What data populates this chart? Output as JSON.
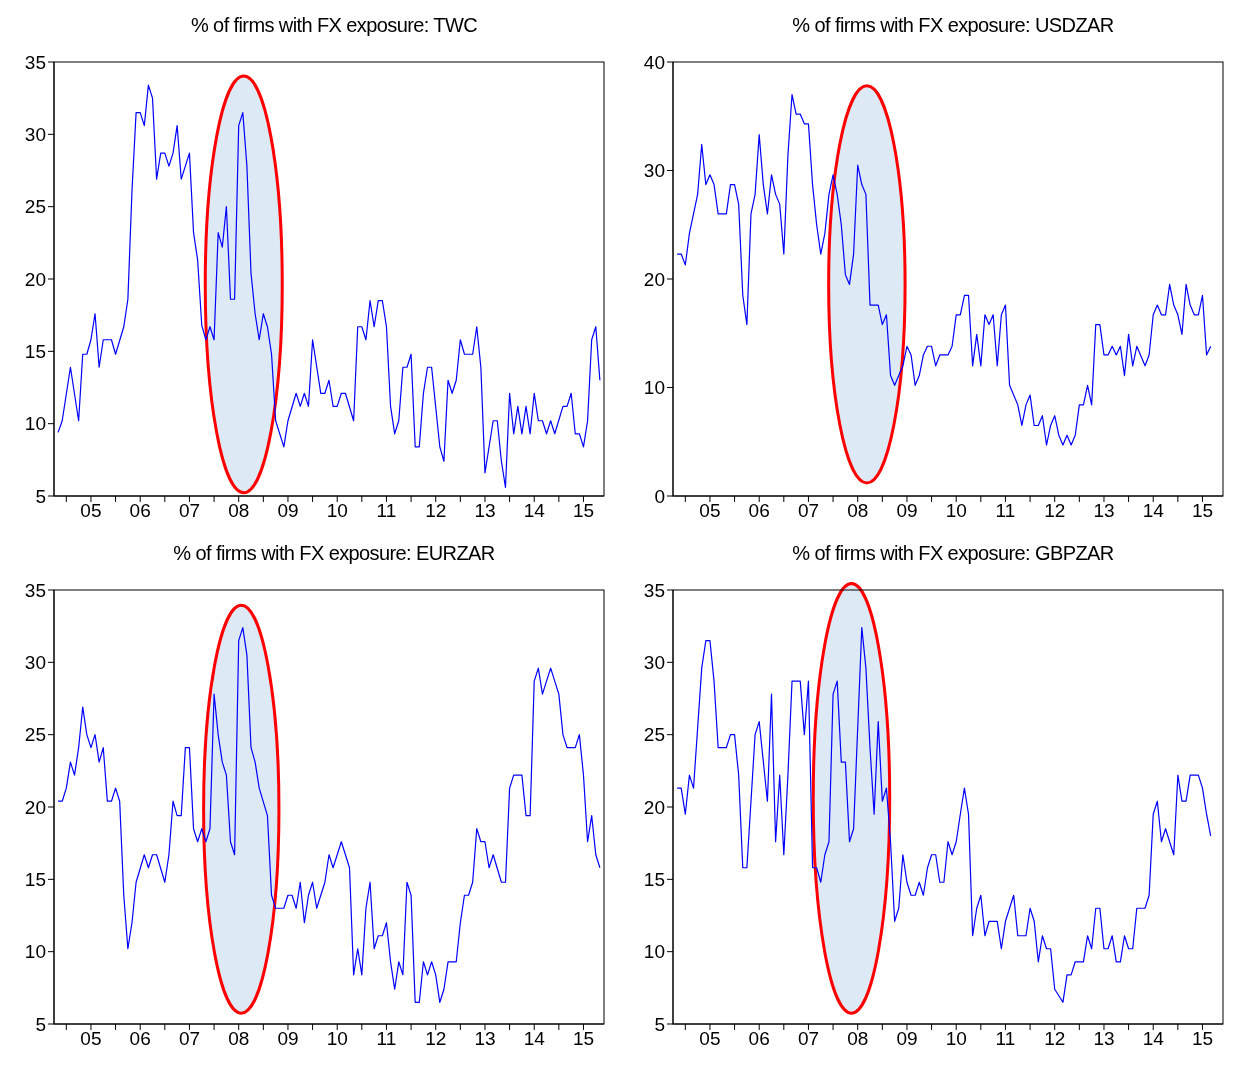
{
  "chart_data": [
    {
      "type": "line",
      "title": "% of firms with FX exposure: TWC",
      "color": "#0000ff",
      "x": [
        "2004-11",
        "2004-12",
        "2005-02",
        "2005-04",
        "2005-05",
        "2005-06",
        "2005-07",
        "2005-08",
        "2005-09",
        "2005-10",
        "2005-12",
        "2006-01",
        "2006-03",
        "2006-04",
        "2006-05",
        "2006-06",
        "2006-07",
        "2006-08",
        "2006-09",
        "2006-10",
        "2006-11",
        "2006-12",
        "2007-01",
        "2007-02",
        "2007-03",
        "2007-04",
        "2007-05",
        "2007-07",
        "2007-08",
        "2007-09",
        "2007-10",
        "2007-11",
        "2007-12",
        "2008-01",
        "2008-02",
        "2008-03",
        "2008-04",
        "2008-05",
        "2008-06",
        "2008-07",
        "2008-08",
        "2008-09",
        "2008-10",
        "2008-11",
        "2008-12",
        "2009-01",
        "2009-02",
        "2009-03",
        "2009-04",
        "2009-06",
        "2009-07",
        "2009-09",
        "2009-10",
        "2009-11",
        "2009-12",
        "2010-01",
        "2010-03",
        "2010-04",
        "2010-05",
        "2010-06",
        "2010-07",
        "2010-08",
        "2010-09",
        "2010-11",
        "2010-12",
        "2011-01",
        "2011-02",
        "2011-03",
        "2011-04",
        "2011-05",
        "2011-06",
        "2011-07",
        "2011-08",
        "2011-09",
        "2011-10",
        "2011-11",
        "2011-12",
        "2012-01",
        "2012-02",
        "2012-03",
        "2012-04",
        "2012-05",
        "2012-06",
        "2012-08",
        "2012-09",
        "2012-10",
        "2012-11",
        "2012-12",
        "2013-01",
        "2013-02",
        "2013-04",
        "2013-05",
        "2013-06",
        "2013-07",
        "2013-09",
        "2013-10",
        "2013-11",
        "2013-12",
        "2014-01",
        "2014-02",
        "2014-03",
        "2014-04",
        "2014-05",
        "2014-06",
        "2014-07",
        "2014-08",
        "2014-09",
        "2014-10",
        "2014-11",
        "2014-12",
        "2015-02",
        "2015-03",
        "2015-04",
        "2015-05",
        "2015-06",
        "2015-07",
        "2015-08",
        "2015-09",
        "2015-10",
        "2015-11"
      ],
      "values": [
        9.4,
        10.2,
        13.9,
        10.2,
        14.8,
        14.8,
        15.8,
        17.6,
        13.9,
        15.8,
        15.8,
        14.8,
        16.7,
        18.6,
        26.1,
        31.5,
        31.5,
        30.6,
        33.4,
        32.5,
        26.9,
        28.7,
        28.7,
        27.8,
        28.7,
        30.6,
        26.9,
        28.7,
        23.2,
        21.3,
        16.8,
        15.8,
        16.7,
        15.8,
        23.2,
        22.2,
        25.0,
        18.6,
        18.6,
        30.6,
        31.5,
        27.8,
        20.4,
        17.6,
        15.8,
        17.6,
        16.7,
        14.8,
        10.2,
        8.4,
        10.2,
        12.1,
        11.2,
        12.1,
        11.2,
        15.8,
        12.1,
        12.1,
        13.0,
        11.2,
        11.2,
        12.1,
        12.1,
        10.2,
        16.7,
        16.7,
        15.8,
        18.5,
        16.7,
        18.5,
        18.5,
        16.7,
        11.2,
        9.3,
        10.2,
        13.9,
        13.9,
        14.8,
        8.4,
        8.4,
        12.1,
        13.9,
        13.9,
        8.4,
        7.4,
        13.0,
        12.1,
        13.0,
        15.8,
        14.8,
        14.8,
        16.7,
        13.9,
        6.6,
        10.2,
        10.2,
        7.4,
        5.6,
        12.1,
        9.3,
        11.2,
        9.3,
        11.2,
        9.3,
        12.1,
        10.2,
        10.2,
        9.3,
        10.2,
        9.3,
        11.2,
        11.2,
        12.1,
        9.3,
        9.3,
        8.4,
        10.2,
        15.8,
        16.7,
        13.0
      ],
      "xlim": [
        "2004-10",
        "2015-12"
      ],
      "xticks": [
        {
          "value": "2005-01",
          "label": null
        },
        {
          "value": "2005-07",
          "label": "05"
        },
        {
          "value": "2006-01",
          "label": null
        },
        {
          "value": "2006-07",
          "label": "06"
        },
        {
          "value": "2007-01",
          "label": null
        },
        {
          "value": "2007-07",
          "label": "07"
        },
        {
          "value": "2008-01",
          "label": null
        },
        {
          "value": "2008-07",
          "label": "08"
        },
        {
          "value": "2009-01",
          "label": null
        },
        {
          "value": "2009-07",
          "label": "09"
        },
        {
          "value": "2010-01",
          "label": null
        },
        {
          "value": "2010-07",
          "label": "10"
        },
        {
          "value": "2011-01",
          "label": null
        },
        {
          "value": "2011-07",
          "label": "11"
        },
        {
          "value": "2012-01",
          "label": null
        },
        {
          "value": "2012-07",
          "label": "12"
        },
        {
          "value": "2013-01",
          "label": null
        },
        {
          "value": "2013-07",
          "label": "13"
        },
        {
          "value": "2014-01",
          "label": null
        },
        {
          "value": "2014-07",
          "label": "14"
        },
        {
          "value": "2015-01",
          "label": null
        },
        {
          "value": "2015-07",
          "label": "15"
        }
      ],
      "ylim": [
        5,
        35
      ],
      "yticks": [
        5,
        10,
        15,
        20,
        25,
        30,
        35
      ]
    },
    {
      "type": "line",
      "title": "% of firms with FX exposure: USDZAR",
      "color": "#0000ff",
      "x": [
        "2004-11",
        "2004-12",
        "2005-01",
        "2005-02",
        "2005-04",
        "2005-05",
        "2005-06",
        "2005-07",
        "2005-08",
        "2005-09",
        "2005-11",
        "2005-12",
        "2006-01",
        "2006-02",
        "2006-03",
        "2006-04",
        "2006-05",
        "2006-06",
        "2006-07",
        "2006-08",
        "2006-09",
        "2006-10",
        "2006-11",
        "2006-12",
        "2007-01",
        "2007-02",
        "2007-03",
        "2007-04",
        "2007-05",
        "2007-06",
        "2007-07",
        "2007-08",
        "2007-09",
        "2007-10",
        "2007-11",
        "2007-12",
        "2008-01",
        "2008-02",
        "2008-03",
        "2008-04",
        "2008-05",
        "2008-06",
        "2008-07",
        "2008-08",
        "2008-09",
        "2008-10",
        "2008-12",
        "2009-01",
        "2009-02",
        "2009-03",
        "2009-04",
        "2009-06",
        "2009-07",
        "2009-08",
        "2009-09",
        "2009-10",
        "2009-11",
        "2009-12",
        "2010-01",
        "2010-02",
        "2010-03",
        "2010-05",
        "2010-06",
        "2010-07",
        "2010-08",
        "2010-09",
        "2010-10",
        "2010-11",
        "2010-12",
        "2011-01",
        "2011-02",
        "2011-03",
        "2011-04",
        "2011-05",
        "2011-06",
        "2011-07",
        "2011-08",
        "2011-10",
        "2011-11",
        "2011-12",
        "2012-01",
        "2012-02",
        "2012-03",
        "2012-04",
        "2012-05",
        "2012-06",
        "2012-07",
        "2012-08",
        "2012-09",
        "2012-10",
        "2012-11",
        "2012-12",
        "2013-01",
        "2013-02",
        "2013-03",
        "2013-04",
        "2013-05",
        "2013-06",
        "2013-07",
        "2013-08",
        "2013-09",
        "2013-10",
        "2013-11",
        "2013-12",
        "2014-01",
        "2014-02",
        "2014-03",
        "2014-05",
        "2014-06",
        "2014-07",
        "2014-08",
        "2014-09",
        "2014-10",
        "2014-11",
        "2014-12",
        "2015-01",
        "2015-02",
        "2015-03",
        "2015-04",
        "2015-05",
        "2015-06",
        "2015-07",
        "2015-08",
        "2015-09"
      ],
      "values": [
        22.3,
        22.3,
        21.3,
        24.2,
        27.8,
        32.4,
        28.7,
        29.6,
        28.7,
        26.0,
        26.0,
        28.7,
        28.7,
        26.9,
        18.5,
        15.8,
        26.0,
        27.8,
        33.3,
        28.7,
        26.0,
        29.6,
        27.8,
        26.9,
        22.3,
        31.4,
        37.0,
        35.2,
        35.2,
        34.3,
        34.3,
        28.7,
        25.0,
        22.3,
        24.2,
        27.8,
        29.6,
        27.8,
        25.0,
        20.4,
        19.5,
        22.3,
        30.5,
        28.7,
        27.8,
        17.6,
        17.6,
        15.8,
        16.7,
        11.1,
        10.2,
        12.0,
        13.8,
        13.0,
        10.2,
        11.1,
        13.0,
        13.8,
        13.8,
        12.0,
        13.0,
        13.0,
        13.8,
        16.7,
        16.7,
        18.5,
        18.5,
        12.0,
        14.9,
        12.0,
        16.7,
        15.8,
        16.7,
        12.0,
        16.7,
        17.6,
        10.2,
        8.4,
        6.5,
        8.4,
        9.3,
        6.5,
        6.5,
        7.4,
        4.7,
        6.5,
        7.4,
        5.6,
        4.7,
        5.6,
        4.7,
        5.6,
        8.4,
        8.4,
        10.2,
        8.4,
        15.8,
        15.8,
        13.0,
        13.0,
        13.8,
        13.0,
        13.8,
        11.1,
        14.9,
        12.0,
        13.8,
        12.0,
        13.0,
        16.7,
        17.6,
        16.7,
        16.7,
        19.5,
        17.6,
        16.7,
        14.9,
        19.5,
        17.6,
        16.7,
        16.7,
        18.5,
        13.0,
        13.8
      ],
      "xlim": [
        "2004-10",
        "2015-12"
      ],
      "xticks": [
        {
          "value": "2005-01",
          "label": null
        },
        {
          "value": "2005-07",
          "label": "05"
        },
        {
          "value": "2006-01",
          "label": null
        },
        {
          "value": "2006-07",
          "label": "06"
        },
        {
          "value": "2007-01",
          "label": null
        },
        {
          "value": "2007-07",
          "label": "07"
        },
        {
          "value": "2008-01",
          "label": null
        },
        {
          "value": "2008-07",
          "label": "08"
        },
        {
          "value": "2009-01",
          "label": null
        },
        {
          "value": "2009-07",
          "label": "09"
        },
        {
          "value": "2010-01",
          "label": null
        },
        {
          "value": "2010-07",
          "label": "10"
        },
        {
          "value": "2011-01",
          "label": null
        },
        {
          "value": "2011-07",
          "label": "11"
        },
        {
          "value": "2012-01",
          "label": null
        },
        {
          "value": "2012-07",
          "label": "12"
        },
        {
          "value": "2013-01",
          "label": null
        },
        {
          "value": "2013-07",
          "label": "13"
        },
        {
          "value": "2014-01",
          "label": null
        },
        {
          "value": "2014-07",
          "label": "14"
        },
        {
          "value": "2015-01",
          "label": null
        },
        {
          "value": "2015-07",
          "label": "15"
        }
      ],
      "ylim": [
        0,
        40
      ],
      "yticks": [
        0,
        10,
        20,
        30,
        40
      ]
    },
    {
      "type": "line",
      "title": "% of firms with FX exposure: EURZAR",
      "color": "#0000ff",
      "x": [
        "2004-11",
        "2004-12",
        "2005-01",
        "2005-02",
        "2005-03",
        "2005-04",
        "2005-05",
        "2005-06",
        "2005-07",
        "2005-08",
        "2005-09",
        "2005-10",
        "2005-11",
        "2005-12",
        "2006-01",
        "2006-02",
        "2006-03",
        "2006-04",
        "2006-05",
        "2006-06",
        "2006-08",
        "2006-09",
        "2006-10",
        "2006-11",
        "2007-01",
        "2007-02",
        "2007-03",
        "2007-04",
        "2007-05",
        "2007-06",
        "2007-07",
        "2007-08",
        "2007-09",
        "2007-10",
        "2007-11",
        "2007-12",
        "2008-01",
        "2008-02",
        "2008-03",
        "2008-04",
        "2008-05",
        "2008-06",
        "2008-07",
        "2008-08",
        "2008-09",
        "2008-10",
        "2008-11",
        "2008-12",
        "2009-02",
        "2009-03",
        "2009-04",
        "2009-06",
        "2009-07",
        "2009-08",
        "2009-09",
        "2009-10",
        "2009-11",
        "2009-12",
        "2010-01",
        "2010-02",
        "2010-04",
        "2010-05",
        "2010-06",
        "2010-08",
        "2010-10",
        "2010-11",
        "2010-12",
        "2011-01",
        "2011-02",
        "2011-03",
        "2011-04",
        "2011-05",
        "2011-06",
        "2011-07",
        "2011-08",
        "2011-09",
        "2011-10",
        "2011-11",
        "2011-12",
        "2012-01",
        "2012-02",
        "2012-03",
        "2012-04",
        "2012-05",
        "2012-06",
        "2012-07",
        "2012-08",
        "2012-09",
        "2012-10",
        "2012-12",
        "2013-01",
        "2013-02",
        "2013-03",
        "2013-04",
        "2013-05",
        "2013-06",
        "2013-07",
        "2013-08",
        "2013-09",
        "2013-11",
        "2013-12",
        "2014-01",
        "2014-02",
        "2014-04",
        "2014-05",
        "2014-06",
        "2014-07",
        "2014-08",
        "2014-09",
        "2014-11",
        "2015-01",
        "2015-02",
        "2015-03",
        "2015-05",
        "2015-06",
        "2015-07",
        "2015-08",
        "2015-09",
        "2015-10",
        "2015-11"
      ],
      "values": [
        20.4,
        20.4,
        21.3,
        23.1,
        22.2,
        24.1,
        26.9,
        25.0,
        24.1,
        25.0,
        23.1,
        24.1,
        20.4,
        20.4,
        21.3,
        20.4,
        13.9,
        10.2,
        12.0,
        14.8,
        16.7,
        15.8,
        16.7,
        16.7,
        14.8,
        16.7,
        20.4,
        19.4,
        19.4,
        24.1,
        24.1,
        18.5,
        17.6,
        18.5,
        17.6,
        18.5,
        27.8,
        25.0,
        23.1,
        22.2,
        17.6,
        16.7,
        31.5,
        32.4,
        30.5,
        24.1,
        23.1,
        21.3,
        19.4,
        13.9,
        13.0,
        13.0,
        13.9,
        13.9,
        13.0,
        14.8,
        12.0,
        13.9,
        14.8,
        13.0,
        14.8,
        16.7,
        15.8,
        17.6,
        15.8,
        8.4,
        10.2,
        8.4,
        13.0,
        14.8,
        10.2,
        11.1,
        11.1,
        12.0,
        9.3,
        7.4,
        9.3,
        8.4,
        14.8,
        13.9,
        6.5,
        6.5,
        9.3,
        8.4,
        9.3,
        8.4,
        6.5,
        7.4,
        9.3,
        9.3,
        12.0,
        13.9,
        13.9,
        14.8,
        18.5,
        17.6,
        17.6,
        15.8,
        16.7,
        14.8,
        14.8,
        21.3,
        22.2,
        22.2,
        19.4,
        19.4,
        28.7,
        29.6,
        27.8,
        29.6,
        27.8,
        25.0,
        24.1,
        24.1,
        25.0,
        22.2,
        17.6,
        19.4,
        16.7,
        15.8
      ],
      "xlim": [
        "2004-10",
        "2015-12"
      ],
      "xticks": [
        {
          "value": "2005-01",
          "label": null
        },
        {
          "value": "2005-07",
          "label": "05"
        },
        {
          "value": "2006-01",
          "label": null
        },
        {
          "value": "2006-07",
          "label": "06"
        },
        {
          "value": "2007-01",
          "label": null
        },
        {
          "value": "2007-07",
          "label": "07"
        },
        {
          "value": "2008-01",
          "label": null
        },
        {
          "value": "2008-07",
          "label": "08"
        },
        {
          "value": "2009-01",
          "label": null
        },
        {
          "value": "2009-07",
          "label": "09"
        },
        {
          "value": "2010-01",
          "label": null
        },
        {
          "value": "2010-07",
          "label": "10"
        },
        {
          "value": "2011-01",
          "label": null
        },
        {
          "value": "2011-07",
          "label": "11"
        },
        {
          "value": "2012-01",
          "label": null
        },
        {
          "value": "2012-07",
          "label": "12"
        },
        {
          "value": "2013-01",
          "label": null
        },
        {
          "value": "2013-07",
          "label": "13"
        },
        {
          "value": "2014-01",
          "label": null
        },
        {
          "value": "2014-07",
          "label": "14"
        },
        {
          "value": "2015-01",
          "label": null
        },
        {
          "value": "2015-07",
          "label": "15"
        }
      ],
      "ylim": [
        5,
        35
      ],
      "yticks": [
        5,
        10,
        15,
        20,
        25,
        30,
        35
      ]
    },
    {
      "type": "line",
      "title": "% of firms with FX exposure: GBPZAR",
      "color": "#0000ff",
      "x": [
        "2004-11",
        "2004-12",
        "2005-01",
        "2005-02",
        "2005-03",
        "2005-05",
        "2005-06",
        "2005-07",
        "2005-08",
        "2005-09",
        "2005-11",
        "2005-12",
        "2006-01",
        "2006-02",
        "2006-03",
        "2006-04",
        "2006-06",
        "2006-07",
        "2006-09",
        "2006-10",
        "2006-11",
        "2006-12",
        "2007-01",
        "2007-02",
        "2007-03",
        "2007-05",
        "2007-06",
        "2007-07",
        "2007-08",
        "2007-09",
        "2007-10",
        "2007-11",
        "2007-12",
        "2008-01",
        "2008-02",
        "2008-03",
        "2008-04",
        "2008-05",
        "2008-06",
        "2008-08",
        "2008-09",
        "2008-10",
        "2008-11",
        "2008-12",
        "2009-01",
        "2009-02",
        "2009-03",
        "2009-04",
        "2009-05",
        "2009-06",
        "2009-07",
        "2009-08",
        "2009-09",
        "2009-10",
        "2009-11",
        "2009-12",
        "2010-01",
        "2010-02",
        "2010-03",
        "2010-04",
        "2010-05",
        "2010-06",
        "2010-07",
        "2010-08",
        "2010-09",
        "2010-10",
        "2010-11",
        "2010-12",
        "2011-01",
        "2011-02",
        "2011-03",
        "2011-05",
        "2011-06",
        "2011-07",
        "2011-09",
        "2011-10",
        "2011-12",
        "2012-01",
        "2012-02",
        "2012-03",
        "2012-04",
        "2012-05",
        "2012-06",
        "2012-07",
        "2012-09",
        "2012-10",
        "2012-11",
        "2012-12",
        "2013-02",
        "2013-03",
        "2013-04",
        "2013-05",
        "2013-06",
        "2013-07",
        "2013-08",
        "2013-09",
        "2013-10",
        "2013-11",
        "2013-12",
        "2014-01",
        "2014-02",
        "2014-03",
        "2014-05",
        "2014-06",
        "2014-07",
        "2014-08",
        "2014-09",
        "2014-10",
        "2014-12",
        "2015-01",
        "2015-02",
        "2015-03",
        "2015-04",
        "2015-06",
        "2015-07",
        "2015-08",
        "2015-09"
      ],
      "values": [
        21.3,
        21.3,
        19.5,
        22.2,
        21.3,
        29.6,
        31.5,
        31.5,
        28.7,
        24.1,
        24.1,
        25.0,
        25.0,
        22.2,
        15.8,
        15.8,
        25.0,
        25.9,
        20.4,
        27.8,
        17.6,
        22.2,
        16.7,
        22.2,
        28.7,
        28.7,
        25.0,
        28.7,
        15.8,
        15.8,
        14.8,
        16.7,
        17.6,
        27.8,
        28.7,
        23.1,
        23.1,
        17.6,
        18.5,
        32.4,
        29.6,
        24.1,
        19.5,
        25.9,
        20.4,
        21.3,
        17.6,
        12.1,
        13.0,
        16.7,
        14.8,
        13.9,
        13.9,
        14.8,
        13.9,
        15.8,
        16.7,
        16.7,
        14.8,
        14.8,
        17.6,
        16.7,
        17.6,
        19.5,
        21.3,
        19.5,
        11.1,
        13.0,
        13.9,
        11.1,
        12.1,
        12.1,
        10.2,
        12.1,
        13.9,
        11.1,
        11.1,
        13.0,
        12.1,
        9.3,
        11.1,
        10.2,
        10.2,
        7.4,
        6.5,
        8.4,
        8.4,
        9.3,
        9.3,
        11.1,
        10.2,
        13.0,
        13.0,
        10.2,
        10.2,
        11.1,
        9.3,
        9.3,
        11.1,
        10.2,
        10.2,
        13.0,
        13.0,
        13.9,
        19.5,
        20.4,
        17.6,
        18.5,
        16.7,
        22.2,
        20.4,
        20.4,
        22.2,
        22.2,
        21.3,
        19.5,
        18.0
      ],
      "xlim": [
        "2004-10",
        "2015-12"
      ],
      "xticks": [
        {
          "value": "2005-01",
          "label": null
        },
        {
          "value": "2005-07",
          "label": "05"
        },
        {
          "value": "2006-01",
          "label": null
        },
        {
          "value": "2006-07",
          "label": "06"
        },
        {
          "value": "2007-01",
          "label": null
        },
        {
          "value": "2007-07",
          "label": "07"
        },
        {
          "value": "2008-01",
          "label": null
        },
        {
          "value": "2008-07",
          "label": "08"
        },
        {
          "value": "2009-01",
          "label": null
        },
        {
          "value": "2009-07",
          "label": "09"
        },
        {
          "value": "2010-01",
          "label": null
        },
        {
          "value": "2010-07",
          "label": "10"
        },
        {
          "value": "2011-01",
          "label": null
        },
        {
          "value": "2011-07",
          "label": "11"
        },
        {
          "value": "2012-01",
          "label": null
        },
        {
          "value": "2012-07",
          "label": "12"
        },
        {
          "value": "2013-01",
          "label": null
        },
        {
          "value": "2013-07",
          "label": "13"
        },
        {
          "value": "2014-01",
          "label": null
        },
        {
          "value": "2014-07",
          "label": "14"
        },
        {
          "value": "2015-01",
          "label": null
        },
        {
          "value": "2015-07",
          "label": "15"
        }
      ],
      "ylim": [
        5,
        35
      ],
      "yticks": [
        5,
        10,
        15,
        20,
        25,
        30,
        35
      ]
    }
  ]
}
